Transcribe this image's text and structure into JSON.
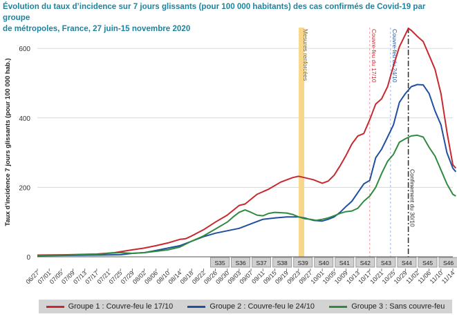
{
  "title": {
    "line1": "Évolution du taux d’incidence sur 7 jours glissants (pour 100 000 habitants) des cas confirmés de Covid-19 par groupe",
    "line2": "de métropoles, France, 27 juin-15 novembre 2020"
  },
  "chart_data": {
    "type": "line",
    "ylabel": "Taux d’incidence 7 jours glissants (pour 100 000 hab.)",
    "ylim": [
      0,
      660
    ],
    "yticks": [
      0,
      200,
      400,
      600
    ],
    "x_days": 141,
    "x_ticks": [
      {
        "day": 0,
        "label": "06/27"
      },
      {
        "day": 4,
        "label": "07/01"
      },
      {
        "day": 8,
        "label": "07/05"
      },
      {
        "day": 12,
        "label": "07/09"
      },
      {
        "day": 16,
        "label": "07/13"
      },
      {
        "day": 20,
        "label": "07/17"
      },
      {
        "day": 24,
        "label": "07/21"
      },
      {
        "day": 28,
        "label": "07/25"
      },
      {
        "day": 32,
        "label": "07/29"
      },
      {
        "day": 36,
        "label": "08/02"
      },
      {
        "day": 40,
        "label": "08/06"
      },
      {
        "day": 44,
        "label": "08/10"
      },
      {
        "day": 48,
        "label": "08/14"
      },
      {
        "day": 52,
        "label": "08/18"
      },
      {
        "day": 56,
        "label": "08/22"
      },
      {
        "day": 60,
        "label": "08/26"
      },
      {
        "day": 64,
        "label": "08/30"
      },
      {
        "day": 68,
        "label": "09/03"
      },
      {
        "day": 72,
        "label": "09/07"
      },
      {
        "day": 76,
        "label": "09/11"
      },
      {
        "day": 80,
        "label": "09/15"
      },
      {
        "day": 84,
        "label": "09/19"
      },
      {
        "day": 88,
        "label": "09/23"
      },
      {
        "day": 92,
        "label": "09/27"
      },
      {
        "day": 96,
        "label": "10/01"
      },
      {
        "day": 100,
        "label": "10/05"
      },
      {
        "day": 104,
        "label": "10/09"
      },
      {
        "day": 108,
        "label": "10/13"
      },
      {
        "day": 112,
        "label": "10/17"
      },
      {
        "day": 116,
        "label": "10/21"
      },
      {
        "day": 120,
        "label": "10/25"
      },
      {
        "day": 124,
        "label": "10/29"
      },
      {
        "day": 128,
        "label": "11/02"
      },
      {
        "day": 132,
        "label": "11/06"
      },
      {
        "day": 136,
        "label": "11/10"
      },
      {
        "day": 140,
        "label": "11/14"
      }
    ],
    "week_boxes": [
      {
        "label": "S35",
        "start_day": 58
      },
      {
        "label": "S36",
        "start_day": 65
      },
      {
        "label": "S37",
        "start_day": 72
      },
      {
        "label": "S38",
        "start_day": 79
      },
      {
        "label": "S39",
        "start_day": 86
      },
      {
        "label": "S40",
        "start_day": 93
      },
      {
        "label": "S41",
        "start_day": 100
      },
      {
        "label": "S42",
        "start_day": 107
      },
      {
        "label": "S43",
        "start_day": 114
      },
      {
        "label": "S44",
        "start_day": 121
      },
      {
        "label": "S45",
        "start_day": 128
      },
      {
        "label": "S46",
        "start_day": 135
      }
    ],
    "annotations": [
      {
        "label": "Mesures renforcées",
        "day": 89,
        "style": "band",
        "color": "#f9d78a",
        "text_color": "#7a5a00"
      },
      {
        "label": "Couvre-feu du 17/10",
        "day": 112,
        "style": "dashed",
        "color": "#e49aa0",
        "text_color": "#c0282f"
      },
      {
        "label": "Couvre-feu du 24/10",
        "day": 119,
        "style": "dashed",
        "color": "#9fb8dd",
        "text_color": "#1f4f9f"
      },
      {
        "label": "Confinement du 30/10",
        "day": 125,
        "style": "dashdot",
        "color": "#333333",
        "text_color": "#222222"
      }
    ],
    "series": [
      {
        "name": "Groupe 1 : Couvre-feu le 17/10",
        "color": "#c8282d",
        "points": [
          [
            0,
            5
          ],
          [
            10,
            6
          ],
          [
            20,
            8
          ],
          [
            26,
            12
          ],
          [
            32,
            20
          ],
          [
            36,
            25
          ],
          [
            40,
            32
          ],
          [
            44,
            40
          ],
          [
            48,
            50
          ],
          [
            50,
            52
          ],
          [
            52,
            60
          ],
          [
            56,
            78
          ],
          [
            60,
            100
          ],
          [
            64,
            120
          ],
          [
            68,
            148
          ],
          [
            70,
            152
          ],
          [
            74,
            180
          ],
          [
            78,
            195
          ],
          [
            82,
            215
          ],
          [
            86,
            228
          ],
          [
            88,
            232
          ],
          [
            90,
            228
          ],
          [
            93,
            222
          ],
          [
            96,
            212
          ],
          [
            98,
            218
          ],
          [
            100,
            235
          ],
          [
            102,
            262
          ],
          [
            104,
            292
          ],
          [
            106,
            325
          ],
          [
            108,
            348
          ],
          [
            110,
            355
          ],
          [
            112,
            395
          ],
          [
            114,
            440
          ],
          [
            116,
            455
          ],
          [
            118,
            490
          ],
          [
            120,
            550
          ],
          [
            122,
            605
          ],
          [
            124,
            640
          ],
          [
            125,
            658
          ],
          [
            126,
            652
          ],
          [
            128,
            635
          ],
          [
            130,
            620
          ],
          [
            132,
            580
          ],
          [
            134,
            540
          ],
          [
            136,
            470
          ],
          [
            138,
            360
          ],
          [
            140,
            265
          ],
          [
            141,
            255
          ]
        ]
      },
      {
        "name": "Groupe 2 : Couvre-feu le 24/10",
        "color": "#1f4f9f",
        "points": [
          [
            0,
            3
          ],
          [
            10,
            4
          ],
          [
            20,
            5
          ],
          [
            28,
            6
          ],
          [
            32,
            10
          ],
          [
            36,
            12
          ],
          [
            40,
            18
          ],
          [
            44,
            25
          ],
          [
            48,
            32
          ],
          [
            52,
            45
          ],
          [
            56,
            58
          ],
          [
            60,
            68
          ],
          [
            64,
            75
          ],
          [
            68,
            82
          ],
          [
            72,
            95
          ],
          [
            76,
            108
          ],
          [
            80,
            112
          ],
          [
            84,
            115
          ],
          [
            88,
            115
          ],
          [
            90,
            112
          ],
          [
            93,
            105
          ],
          [
            96,
            103
          ],
          [
            98,
            108
          ],
          [
            100,
            115
          ],
          [
            102,
            128
          ],
          [
            104,
            145
          ],
          [
            106,
            160
          ],
          [
            108,
            185
          ],
          [
            110,
            210
          ],
          [
            112,
            220
          ],
          [
            114,
            285
          ],
          [
            116,
            310
          ],
          [
            118,
            345
          ],
          [
            120,
            380
          ],
          [
            122,
            445
          ],
          [
            124,
            470
          ],
          [
            126,
            490
          ],
          [
            128,
            496
          ],
          [
            130,
            495
          ],
          [
            132,
            470
          ],
          [
            134,
            420
          ],
          [
            136,
            380
          ],
          [
            138,
            300
          ],
          [
            140,
            255
          ],
          [
            141,
            245
          ]
        ]
      },
      {
        "name": "Groupe 3 : Sans couvre-feu",
        "color": "#2e8a3d",
        "points": [
          [
            0,
            4
          ],
          [
            10,
            5
          ],
          [
            20,
            7
          ],
          [
            24,
            10
          ],
          [
            28,
            12
          ],
          [
            32,
            10
          ],
          [
            36,
            12
          ],
          [
            40,
            16
          ],
          [
            44,
            20
          ],
          [
            48,
            28
          ],
          [
            52,
            45
          ],
          [
            56,
            60
          ],
          [
            60,
            80
          ],
          [
            64,
            100
          ],
          [
            66,
            115
          ],
          [
            68,
            128
          ],
          [
            70,
            135
          ],
          [
            72,
            128
          ],
          [
            74,
            120
          ],
          [
            76,
            118
          ],
          [
            78,
            125
          ],
          [
            80,
            128
          ],
          [
            84,
            126
          ],
          [
            86,
            122
          ],
          [
            88,
            115
          ],
          [
            90,
            110
          ],
          [
            92,
            108
          ],
          [
            94,
            105
          ],
          [
            96,
            108
          ],
          [
            98,
            112
          ],
          [
            100,
            118
          ],
          [
            102,
            125
          ],
          [
            104,
            130
          ],
          [
            106,
            132
          ],
          [
            108,
            140
          ],
          [
            110,
            160
          ],
          [
            112,
            175
          ],
          [
            114,
            200
          ],
          [
            116,
            240
          ],
          [
            118,
            275
          ],
          [
            120,
            295
          ],
          [
            122,
            330
          ],
          [
            124,
            340
          ],
          [
            126,
            348
          ],
          [
            128,
            350
          ],
          [
            130,
            345
          ],
          [
            132,
            315
          ],
          [
            134,
            290
          ],
          [
            136,
            250
          ],
          [
            138,
            210
          ],
          [
            140,
            180
          ],
          [
            141,
            175
          ]
        ]
      }
    ]
  }
}
